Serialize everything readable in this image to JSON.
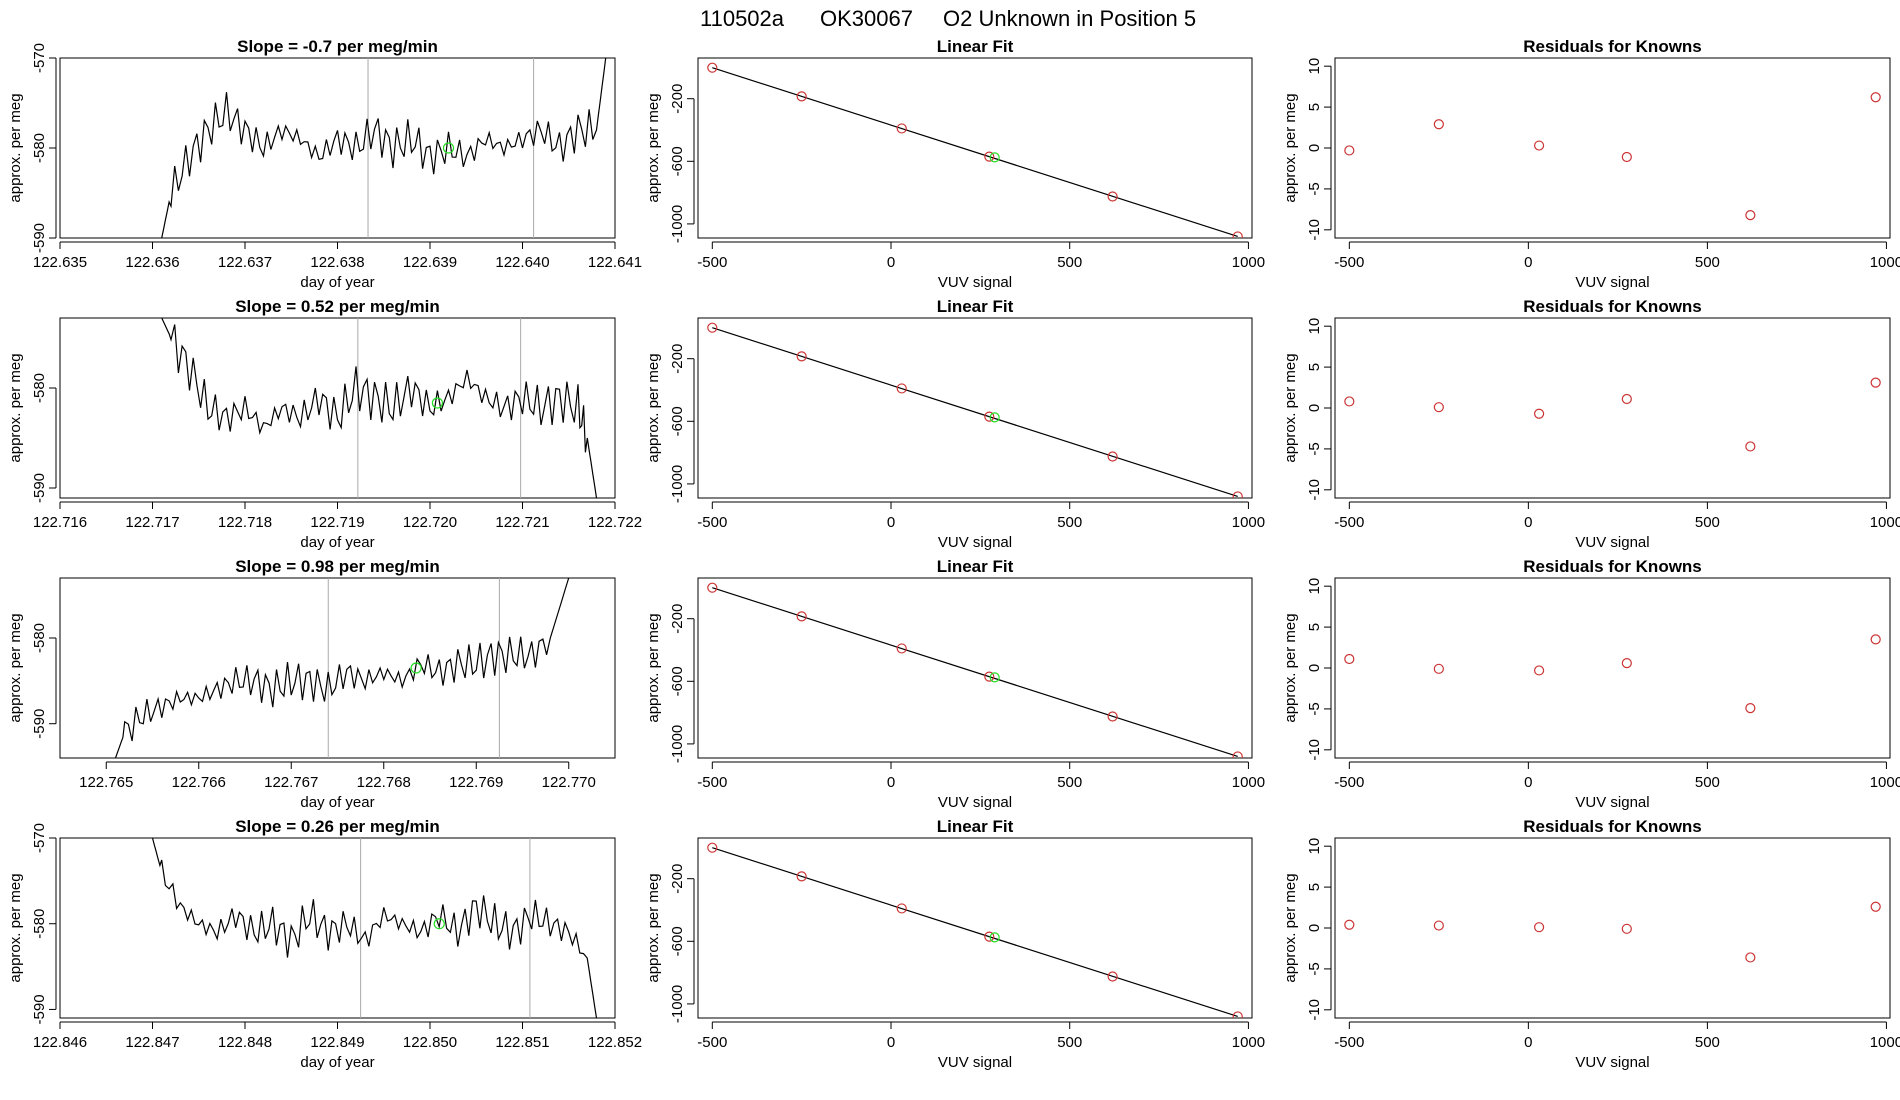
{
  "figure": {
    "title_parts": [
      "110502a",
      "OK30067",
      "O2 Unknown in Position  5"
    ]
  },
  "colors": {
    "trace": "#000000",
    "known_point": "#cc3333",
    "unknown_point": "#22dd22",
    "vline": "#aaaaaa"
  },
  "chart_data": [
    {
      "type": "line",
      "row": 1,
      "col": "timeseries",
      "title": "Slope =  -0.7  per meg/min",
      "xlabel": "day of year",
      "ylabel": "approx. per meg",
      "xlim": [
        122.635,
        122.641
      ],
      "ylim": [
        -590,
        -570
      ],
      "xticks": [
        122.635,
        122.636,
        122.637,
        122.638,
        122.639,
        122.64,
        122.641
      ],
      "xtick_labels": [
        "122.635",
        "122.636",
        "122.637",
        "122.638",
        "122.639",
        "122.640",
        "122.641"
      ],
      "yticks": [
        -590,
        -580,
        -570
      ],
      "ytick_labels": [
        "-590",
        "-580",
        "-570"
      ],
      "series_start": 122.636,
      "series_end": 122.6409,
      "x": [
        122.6361,
        122.6362,
        122.6364,
        122.6366,
        122.6368,
        122.637,
        122.6372,
        122.6374,
        122.6376,
        122.6378,
        122.638,
        122.6382,
        122.6384,
        122.6386,
        122.6388,
        122.639,
        122.6392,
        122.6394,
        122.6396,
        122.6398,
        122.64,
        122.6402,
        122.6404,
        122.6406,
        122.6408,
        122.6409
      ],
      "y": [
        -590,
        -585,
        -581,
        -578,
        -576,
        -578,
        -580,
        -578,
        -579,
        -581,
        -579,
        -580,
        -578,
        -580,
        -579,
        -581,
        -580,
        -581,
        -579,
        -580,
        -579,
        -578,
        -580,
        -578,
        -578,
        -570
      ],
      "vlines": [
        122.63833,
        122.64012
      ],
      "unknown_point": {
        "x": 122.6392,
        "y": -580
      }
    },
    {
      "type": "line",
      "row": 2,
      "col": "timeseries",
      "title": "Slope =  0.52  per meg/min",
      "xlabel": "day of year",
      "ylabel": "approx. per meg",
      "xlim": [
        122.716,
        122.722
      ],
      "ylim": [
        -591,
        -573
      ],
      "xticks": [
        122.716,
        122.717,
        122.718,
        122.719,
        122.72,
        122.721,
        122.722
      ],
      "xtick_labels": [
        "122.716",
        "122.717",
        "122.718",
        "122.719",
        "122.720",
        "122.721",
        "122.722"
      ],
      "yticks": [
        -590,
        -580
      ],
      "ytick_labels": [
        "-590",
        "-580"
      ],
      "series_start": 122.7171,
      "series_end": 122.7218,
      "x": [
        122.7171,
        122.7172,
        122.7174,
        122.7176,
        122.7178,
        122.718,
        122.7182,
        122.7184,
        122.7186,
        122.7188,
        122.719,
        122.7192,
        122.7194,
        122.7196,
        122.7198,
        122.72,
        122.7202,
        122.7204,
        122.7206,
        122.7208,
        122.721,
        122.7212,
        122.7214,
        122.7216,
        122.7217,
        122.7218
      ],
      "y": [
        -573,
        -575,
        -578,
        -582,
        -583,
        -582,
        -584,
        -582,
        -583,
        -581,
        -583,
        -580,
        -581,
        -582,
        -580,
        -582,
        -581,
        -579,
        -581,
        -582,
        -581,
        -582,
        -581,
        -582,
        -585,
        -591
      ],
      "vlines": [
        122.71922,
        122.72098
      ],
      "unknown_point": {
        "x": 122.72008,
        "y": -581.5
      }
    },
    {
      "type": "line",
      "row": 3,
      "col": "timeseries",
      "title": "Slope =  0.98  per meg/min",
      "xlabel": "day of year",
      "ylabel": "approx. per meg",
      "xlim": [
        122.7645,
        122.7705
      ],
      "ylim": [
        -594,
        -573
      ],
      "xticks": [
        122.765,
        122.766,
        122.767,
        122.768,
        122.769,
        122.77
      ],
      "xtick_labels": [
        "122.765",
        "122.766",
        "122.767",
        "122.768",
        "122.769",
        "122.770"
      ],
      "yticks": [
        -590,
        -580
      ],
      "ytick_labels": [
        "-590",
        "-580"
      ],
      "series_start": 122.7651,
      "series_end": 122.77,
      "x": [
        122.7651,
        122.7652,
        122.7654,
        122.7656,
        122.7658,
        122.766,
        122.7662,
        122.7664,
        122.7666,
        122.7668,
        122.767,
        122.7672,
        122.7674,
        122.7676,
        122.7678,
        122.768,
        122.7682,
        122.7684,
        122.7686,
        122.7688,
        122.769,
        122.7692,
        122.7694,
        122.7696,
        122.7698,
        122.77
      ],
      "y": [
        -594,
        -591,
        -589,
        -588,
        -587,
        -587,
        -586,
        -585,
        -585,
        -586,
        -585,
        -585,
        -586,
        -584,
        -585,
        -584,
        -585,
        -583,
        -584,
        -583,
        -583,
        -582,
        -582,
        -582,
        -580,
        -573
      ],
      "vlines": [
        122.7674,
        122.76925
      ],
      "unknown_point": {
        "x": 122.76835,
        "y": -583.5
      }
    },
    {
      "type": "line",
      "row": 4,
      "col": "timeseries",
      "title": "Slope =  0.26  per meg/min",
      "xlabel": "day of year",
      "ylabel": "approx. per meg",
      "xlim": [
        122.846,
        122.852
      ],
      "ylim": [
        -591,
        -570
      ],
      "xticks": [
        122.846,
        122.847,
        122.848,
        122.849,
        122.85,
        122.851,
        122.852
      ],
      "xtick_labels": [
        "122.846",
        "122.847",
        "122.848",
        "122.849",
        "122.850",
        "122.851",
        "122.852"
      ],
      "yticks": [
        -590,
        -580,
        -570
      ],
      "ytick_labels": [
        "-590",
        "-580",
        "-570"
      ],
      "series_start": 122.847,
      "series_end": 122.8518,
      "x": [
        122.847,
        122.8471,
        122.8473,
        122.8475,
        122.8477,
        122.8479,
        122.8481,
        122.8483,
        122.8485,
        122.8487,
        122.8489,
        122.8491,
        122.8493,
        122.8495,
        122.8497,
        122.8499,
        122.8501,
        122.8503,
        122.8505,
        122.8507,
        122.8509,
        122.8511,
        122.8513,
        122.8515,
        122.8517,
        122.8518
      ],
      "y": [
        -570,
        -574,
        -578,
        -580,
        -581,
        -579,
        -581,
        -580,
        -582,
        -579,
        -581,
        -580,
        -582,
        -579,
        -580,
        -581,
        -579,
        -581,
        -578,
        -580,
        -581,
        -579,
        -580,
        -581,
        -584,
        -591
      ],
      "vlines": [
        122.84925,
        122.85108
      ],
      "unknown_point": {
        "x": 122.8501,
        "y": -580
      }
    },
    {
      "type": "scatter",
      "row": 1,
      "col": "linear_fit",
      "title": "Linear Fit",
      "xlabel": "VUV signal",
      "ylabel": "approx. per meg",
      "xlim": [
        -540,
        1010
      ],
      "ylim": [
        -1090,
        60
      ],
      "xticks": [
        -500,
        0,
        500,
        1000
      ],
      "xtick_labels": [
        "-500",
        "0",
        "500",
        "1000"
      ],
      "yticks": [
        -1000,
        -600,
        -200
      ],
      "ytick_labels": [
        "-1000",
        "-600",
        "-200"
      ],
      "fit_line": {
        "x": [
          -500,
          970
        ],
        "y": [
          -2,
          -1080
        ]
      },
      "knowns": {
        "x": [
          -500,
          -250,
          30,
          275,
          620,
          970
        ],
        "y": [
          -2,
          -185,
          -390,
          -570,
          -825,
          -1080
        ]
      },
      "unknown_point": {
        "x": 290,
        "y": -575
      }
    },
    {
      "type": "scatter",
      "row": 2,
      "col": "linear_fit",
      "title": "Linear Fit",
      "xlabel": "VUV signal",
      "ylabel": "approx. per meg",
      "xlim": [
        -540,
        1010
      ],
      "ylim": [
        -1090,
        60
      ],
      "xticks": [
        -500,
        0,
        500,
        1000
      ],
      "xtick_labels": [
        "-500",
        "0",
        "500",
        "1000"
      ],
      "yticks": [
        -1000,
        -600,
        -200
      ],
      "ytick_labels": [
        "-1000",
        "-600",
        "-200"
      ],
      "fit_line": {
        "x": [
          -500,
          970
        ],
        "y": [
          -2,
          -1080
        ]
      },
      "knowns": {
        "x": [
          -500,
          -250,
          30,
          275,
          620,
          970
        ],
        "y": [
          -2,
          -185,
          -390,
          -570,
          -825,
          -1080
        ]
      },
      "unknown_point": {
        "x": 290,
        "y": -575
      }
    },
    {
      "type": "scatter",
      "row": 3,
      "col": "linear_fit",
      "title": "Linear Fit",
      "xlabel": "VUV signal",
      "ylabel": "approx. per meg",
      "xlim": [
        -540,
        1010
      ],
      "ylim": [
        -1090,
        60
      ],
      "xticks": [
        -500,
        0,
        500,
        1000
      ],
      "xtick_labels": [
        "-500",
        "0",
        "500",
        "1000"
      ],
      "yticks": [
        -1000,
        -600,
        -200
      ],
      "ytick_labels": [
        "-1000",
        "-600",
        "-200"
      ],
      "fit_line": {
        "x": [
          -500,
          970
        ],
        "y": [
          -2,
          -1080
        ]
      },
      "knowns": {
        "x": [
          -500,
          -250,
          30,
          275,
          620,
          970
        ],
        "y": [
          -2,
          -185,
          -390,
          -570,
          -825,
          -1080
        ]
      },
      "unknown_point": {
        "x": 290,
        "y": -575
      }
    },
    {
      "type": "scatter",
      "row": 4,
      "col": "linear_fit",
      "title": "Linear Fit",
      "xlabel": "VUV signal",
      "ylabel": "approx. per meg",
      "xlim": [
        -540,
        1010
      ],
      "ylim": [
        -1090,
        60
      ],
      "xticks": [
        -500,
        0,
        500,
        1000
      ],
      "xtick_labels": [
        "-500",
        "0",
        "500",
        "1000"
      ],
      "yticks": [
        -1000,
        -600,
        -200
      ],
      "ytick_labels": [
        "-1000",
        "-600",
        "-200"
      ],
      "fit_line": {
        "x": [
          -500,
          970
        ],
        "y": [
          -2,
          -1080
        ]
      },
      "knowns": {
        "x": [
          -500,
          -250,
          30,
          275,
          620,
          970
        ],
        "y": [
          -2,
          -185,
          -390,
          -570,
          -825,
          -1080
        ]
      },
      "unknown_point": {
        "x": 290,
        "y": -575
      }
    },
    {
      "type": "scatter",
      "row": 1,
      "col": "residuals",
      "title": "Residuals for Knowns",
      "xlabel": "VUV signal",
      "ylabel": "approx. per meg",
      "xlim": [
        -540,
        1010
      ],
      "ylim": [
        -11,
        11
      ],
      "xticks": [
        -500,
        0,
        500,
        1000
      ],
      "xtick_labels": [
        "-500",
        "0",
        "500",
        "1000"
      ],
      "yticks": [
        -10,
        -5,
        0,
        5,
        10
      ],
      "ytick_labels": [
        "-10",
        "-5",
        "0",
        "5",
        "10"
      ],
      "x": [
        -500,
        -250,
        30,
        275,
        620,
        970
      ],
      "y": [
        -0.3,
        2.9,
        0.3,
        -1.1,
        -8.2,
        6.2
      ]
    },
    {
      "type": "scatter",
      "row": 2,
      "col": "residuals",
      "title": "Residuals for Knowns",
      "xlabel": "VUV signal",
      "ylabel": "approx. per meg",
      "xlim": [
        -540,
        1010
      ],
      "ylim": [
        -11,
        11
      ],
      "xticks": [
        -500,
        0,
        500,
        1000
      ],
      "xtick_labels": [
        "-500",
        "0",
        "500",
        "1000"
      ],
      "yticks": [
        -10,
        -5,
        0,
        5,
        10
      ],
      "ytick_labels": [
        "-10",
        "-5",
        "0",
        "5",
        "10"
      ],
      "x": [
        -500,
        -250,
        30,
        275,
        620,
        970
      ],
      "y": [
        0.8,
        0.1,
        -0.7,
        1.1,
        -4.7,
        3.1
      ]
    },
    {
      "type": "scatter",
      "row": 3,
      "col": "residuals",
      "title": "Residuals for Knowns",
      "xlabel": "VUV signal",
      "ylabel": "approx. per meg",
      "xlim": [
        -540,
        1010
      ],
      "ylim": [
        -11,
        11
      ],
      "xticks": [
        -500,
        0,
        500,
        1000
      ],
      "xtick_labels": [
        "-500",
        "0",
        "500",
        "1000"
      ],
      "yticks": [
        -10,
        -5,
        0,
        5,
        10
      ],
      "ytick_labels": [
        "-10",
        "-5",
        "0",
        "5",
        "10"
      ],
      "x": [
        -500,
        -250,
        30,
        275,
        620,
        970
      ],
      "y": [
        1.1,
        -0.1,
        -0.3,
        0.6,
        -4.9,
        3.5
      ]
    },
    {
      "type": "scatter",
      "row": 4,
      "col": "residuals",
      "title": "Residuals for Knowns",
      "xlabel": "VUV signal",
      "ylabel": "approx. per meg",
      "xlim": [
        -540,
        1010
      ],
      "ylim": [
        -11,
        11
      ],
      "xticks": [
        -500,
        0,
        500,
        1000
      ],
      "xtick_labels": [
        "-500",
        "0",
        "500",
        "1000"
      ],
      "yticks": [
        -10,
        -5,
        0,
        5,
        10
      ],
      "ytick_labels": [
        "-10",
        "-5",
        "0",
        "5",
        "10"
      ],
      "x": [
        -500,
        -250,
        30,
        275,
        620,
        970
      ],
      "y": [
        0.4,
        0.3,
        0.1,
        -0.1,
        -3.6,
        2.6
      ]
    }
  ]
}
